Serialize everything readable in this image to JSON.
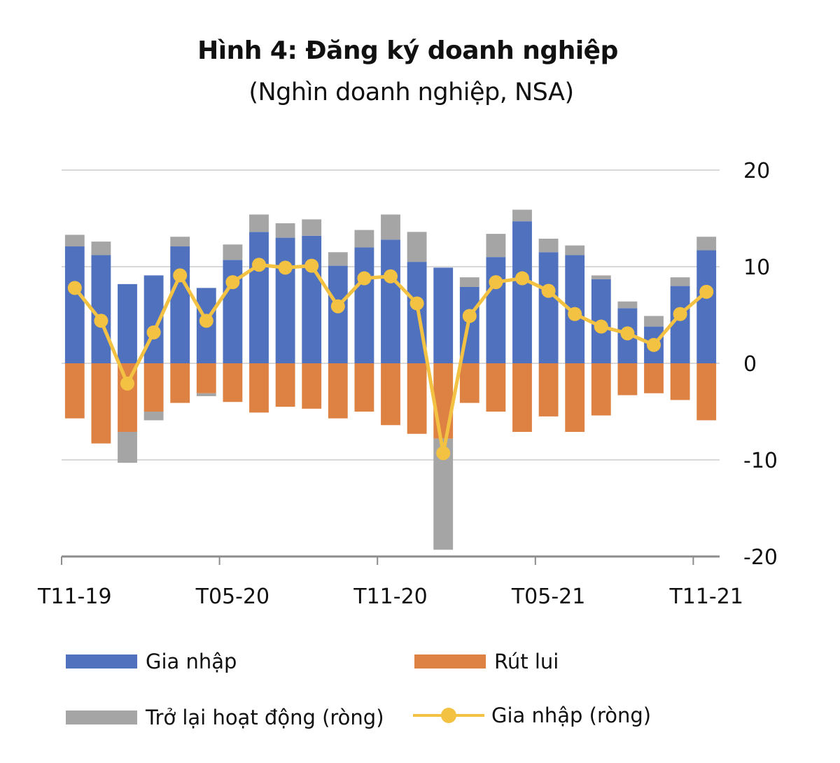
{
  "chart_data": {
    "type": "bar",
    "title": "Hình 4: Đăng ký doanh nghiệp",
    "subtitle": "(Nghìn doanh nghiệp, NSA)",
    "xlabel": "",
    "ylabel": "",
    "ylim": [
      -20,
      20
    ],
    "yticks": [
      20,
      10,
      0,
      -10,
      -20
    ],
    "ytick_labels": [
      "20",
      "10",
      "0",
      "-10",
      "-20"
    ],
    "y_axis_position": "right",
    "grid": true,
    "stacked": true,
    "categories": [
      "T11-19",
      "T12-19",
      "T01-20",
      "T02-20",
      "T03-20",
      "T04-20",
      "T05-20",
      "T06-20",
      "T07-20",
      "T08-20",
      "T09-20",
      "T10-20",
      "T11-20",
      "T12-20",
      "T01-21",
      "T02-21",
      "T03-21",
      "T04-21",
      "T05-21",
      "T06-21",
      "T07-21",
      "T08-21",
      "T09-21",
      "T10-21",
      "T11-21"
    ],
    "xtick_labels": [
      {
        "index": 0,
        "label": "T11-19"
      },
      {
        "index": 6,
        "label": "T05-20"
      },
      {
        "index": 12,
        "label": "T11-20"
      },
      {
        "index": 18,
        "label": "T05-21"
      },
      {
        "index": 24,
        "label": "T11-21"
      }
    ],
    "series": [
      {
        "name": "Gia nhập",
        "type": "bar",
        "color": "#4f71be",
        "values": [
          12.1,
          11.2,
          8.2,
          9.1,
          12.1,
          7.8,
          10.7,
          13.6,
          13.0,
          13.2,
          10.1,
          12.0,
          12.8,
          10.5,
          9.9,
          7.9,
          11.0,
          14.7,
          11.5,
          11.2,
          8.7,
          5.7,
          3.8,
          8.0,
          11.7
        ]
      },
      {
        "name": "Rút lui",
        "type": "bar",
        "color": "#de8244",
        "values": [
          -5.7,
          -8.3,
          -7.1,
          -5.0,
          -4.1,
          -3.1,
          -4.0,
          -5.1,
          -4.5,
          -4.7,
          -5.7,
          -5.0,
          -6.4,
          -7.3,
          -7.8,
          -4.1,
          -5.0,
          -7.1,
          -5.5,
          -7.1,
          -5.4,
          -3.3,
          -3.1,
          -3.8,
          -5.9
        ]
      },
      {
        "name": "Trở lại hoạt động (ròng)",
        "type": "bar",
        "color": "#a5a5a5",
        "values": [
          1.2,
          1.4,
          -3.2,
          -0.9,
          1.0,
          -0.3,
          1.6,
          1.8,
          1.5,
          1.7,
          1.4,
          1.8,
          2.6,
          3.1,
          -11.5,
          1.0,
          2.4,
          1.2,
          1.4,
          1.0,
          0.4,
          0.7,
          1.1,
          0.9,
          1.4
        ]
      },
      {
        "name": "Gia nhập (ròng)",
        "type": "line",
        "color": "#f4c242",
        "values": [
          7.8,
          4.4,
          -2.1,
          3.2,
          9.1,
          4.4,
          8.4,
          10.2,
          9.9,
          10.1,
          5.9,
          8.8,
          9.0,
          6.2,
          -9.3,
          4.9,
          8.4,
          8.8,
          7.5,
          5.1,
          3.8,
          3.1,
          1.9,
          5.1,
          7.4
        ]
      }
    ],
    "legend": {
      "placement": "bottom",
      "entries": [
        "Gia nhập",
        "Rút lui",
        "Trở lại hoạt động (ròng)",
        "Gia nhập (ròng)"
      ]
    }
  }
}
